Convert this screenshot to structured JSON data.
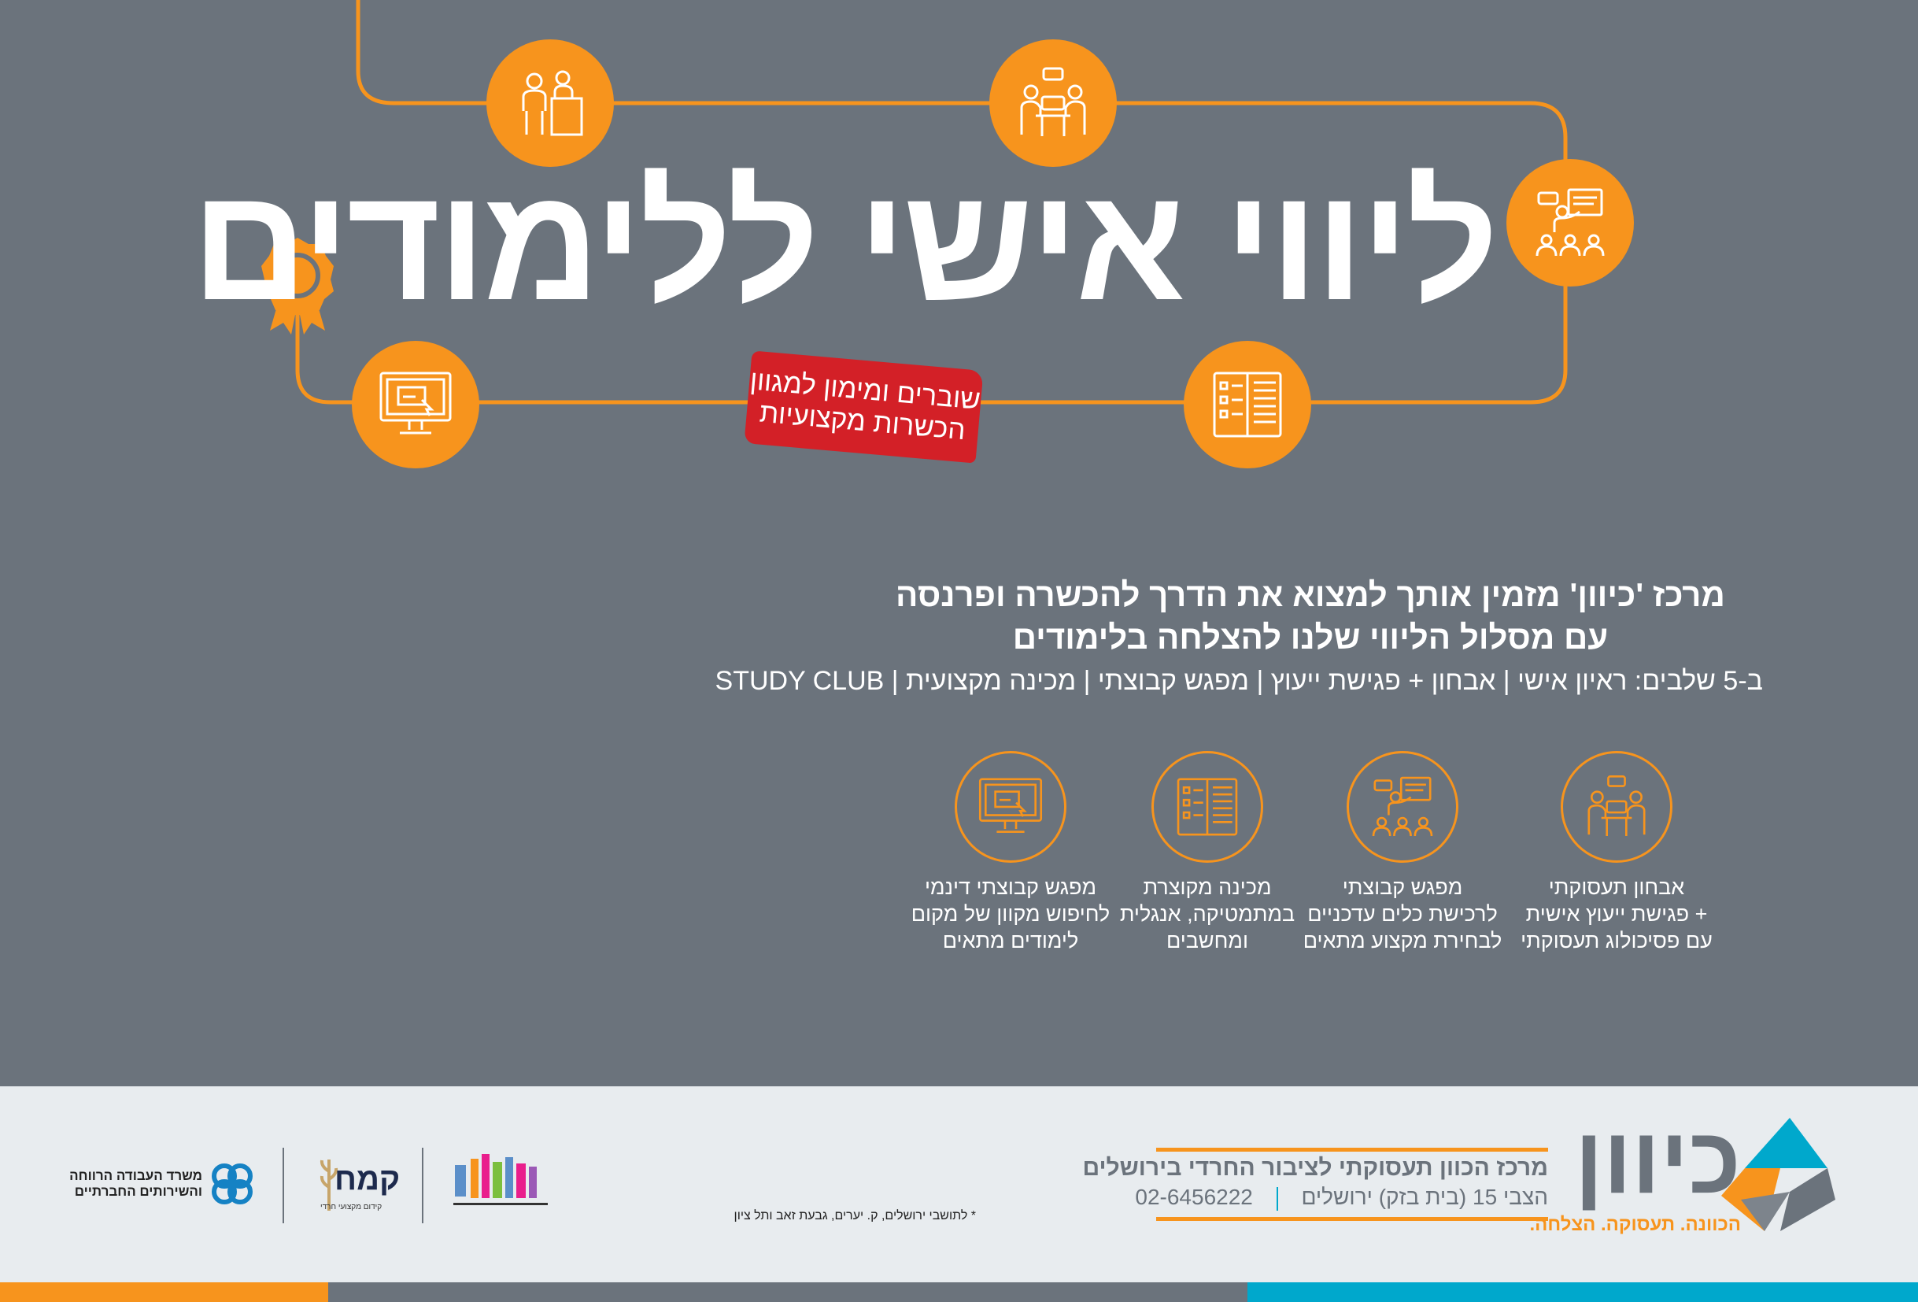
{
  "colors": {
    "background": "#6b737c",
    "accent": "#f7941d",
    "banner": "#d32027",
    "footer": "#e8ecef",
    "teal": "#00a8cc"
  },
  "header": {
    "title": "ליווי אישי ללימודים",
    "banner": {
      "line1": "שוברים ומימון למגוון",
      "line2": "הכשרות מקצועיות"
    }
  },
  "path_icons": [
    "interview-icon",
    "consultation-icon",
    "group-presentation-icon",
    "study-book-icon",
    "computer-icon",
    "award-icon"
  ],
  "intro": {
    "line1": "מרכז 'כיוון' מזמין אותך למצוא את הדרך להכשרה ופרנסה",
    "line2": "עם מסלול הליווי שלנו להצלחה בלימודים",
    "line3": "ב-5 שלבים: ראיון אישי | אבחון + פגישת ייעוץ | מפגש קבוצתי  | מכינה מקצועית | STUDY CLUB"
  },
  "steps": [
    {
      "icon": "consultation-icon",
      "lines": [
        "אבחון תעסוקתי",
        "+ פגישת ייעוץ אישית",
        "עם פסיכולוג תעסוקתי"
      ]
    },
    {
      "icon": "group-presentation-icon",
      "lines": [
        "מפגש קבוצתי",
        "לרכישת כלים עדכניים",
        "לבחירת מקצוע מתאים"
      ]
    },
    {
      "icon": "study-book-icon",
      "lines": [
        "מכינה מקוצרת",
        "במתמטיקה, אנגלית",
        "ומחשבים"
      ]
    },
    {
      "icon": "computer-icon",
      "lines": [
        "מפגש קבוצתי דינמי",
        "לחיפוש מקוון של מקום",
        "לימודים מתאים"
      ]
    }
  ],
  "footer": {
    "logo": {
      "name": "כיוון",
      "tagline": "הכוונה. תעסוקה. הצלחה."
    },
    "org_name": "מרכז הכוון תעסוקתי לציבור החרדי בירושלים",
    "address": "הצבי 15 (בית בזק) ירושלים",
    "phone": "02-6456222",
    "footnote": "* לתושבי ירושלים, ק. יערים,  גבעת זאב ותל ציון",
    "partners": {
      "ministry": {
        "line1": "משרד העבודה הרווחה",
        "line2": "והשירותים החברתיים"
      },
      "kemah": {
        "name": "קמח",
        "tagline": "קידום מקצועי חרדי"
      }
    }
  }
}
